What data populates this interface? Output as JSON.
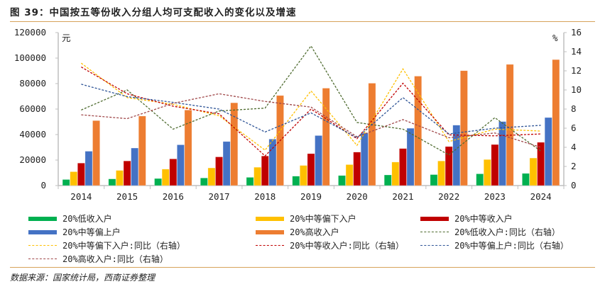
{
  "title": "图 39：中国按五等份收入分组人均可支配收入的变化以及增速",
  "source": "数据来源：国家统计局，西南证券整理",
  "chart_data": {
    "type": "bar+line",
    "title": "中国按五等份收入分组人均可支配收入的变化以及增速",
    "categories": [
      "2014",
      "2015",
      "2016",
      "2017",
      "2018",
      "2019",
      "2020",
      "2021",
      "2022",
      "2023",
      "2024"
    ],
    "left_axis": {
      "label": "元",
      "ylim": [
        0,
        120000
      ],
      "ticks": [
        "0",
        "20000",
        "40000",
        "60000",
        "80000",
        "100000",
        "120000"
      ]
    },
    "right_axis": {
      "label": "%",
      "ylim": [
        0,
        16
      ],
      "ticks": [
        "0",
        "2",
        "4",
        "6",
        "8",
        "10",
        "12",
        "14",
        "16"
      ]
    },
    "bar_series": [
      {
        "name": "20%低收入户",
        "color": "#00b050",
        "values": [
          4747,
          5221,
          5529,
          5958,
          6440,
          7380,
          7869,
          8333,
          8601,
          9215,
          9542
        ]
      },
      {
        "name": "20%中等偏下入户",
        "color": "#ffc000",
        "values": [
          10887,
          11894,
          12899,
          13843,
          14361,
          15777,
          16443,
          18446,
          19303,
          20442,
          21608
        ]
      },
      {
        "name": "20%中等收入户",
        "color": "#c00000",
        "values": [
          17631,
          19320,
          20924,
          22495,
          23189,
          25035,
          26249,
          29053,
          30598,
          32195,
          33925
        ]
      },
      {
        "name": "20%中等偏上户",
        "color": "#4472c4",
        "values": [
          26937,
          29438,
          31990,
          34547,
          36471,
          39230,
          41172,
          44949,
          47397,
          50220,
          53359
        ]
      },
      {
        "name": "20%高收入户",
        "color": "#ed7d31",
        "values": [
          50968,
          54544,
          59259,
          64934,
          70640,
          76401,
          80294,
          85836,
          90116,
          95055,
          98809
        ]
      }
    ],
    "line_series": [
      {
        "name": "20%低收入户:同比（右轴）",
        "color": "#4e6b2f",
        "values": [
          7.9,
          10.0,
          5.9,
          7.8,
          8.1,
          14.6,
          6.6,
          5.9,
          3.2,
          7.1,
          3.6
        ]
      },
      {
        "name": "20%中等偏下入户:同比（右轴）",
        "color": "#ffc000",
        "values": [
          12.8,
          9.2,
          8.5,
          7.3,
          3.7,
          9.9,
          4.2,
          12.2,
          4.6,
          5.9,
          5.7
        ]
      },
      {
        "name": "20%中等收入户:同比（右轴）",
        "color": "#c00000",
        "values": [
          12.4,
          9.6,
          8.3,
          7.5,
          3.1,
          8.0,
          4.9,
          10.7,
          5.3,
          5.2,
          5.4
        ]
      },
      {
        "name": "20%中等偏上户:同比（右轴）",
        "color": "#2f5597",
        "values": [
          10.6,
          9.3,
          8.7,
          8.0,
          5.6,
          7.6,
          5.0,
          9.2,
          5.4,
          6.0,
          6.3
        ]
      },
      {
        "name": "20%高收入户:同比（右轴）",
        "color": "#a0484a",
        "values": [
          7.4,
          7.0,
          8.6,
          9.6,
          8.8,
          8.2,
          5.1,
          6.9,
          5.0,
          5.5,
          4.0
        ]
      }
    ]
  },
  "legend": [
    [
      "20%低收入户",
      "20%中等偏下入户",
      "20%中等收入户"
    ],
    [
      "20%中等偏上户",
      "20%高收入户",
      "20%低收入户:同比（右轴）"
    ],
    [
      "20%中等偏下入户:同比（右轴）",
      "20%中等收入户:同比（右轴）",
      "20%中等偏上户:同比（右轴）"
    ],
    [
      "20%高收入户:同比（右轴）"
    ]
  ]
}
